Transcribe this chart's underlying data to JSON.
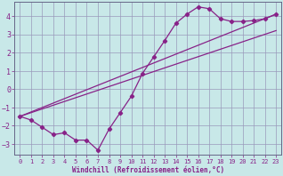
{
  "xlabel": "Windchill (Refroidissement éolien,°C)",
  "bg_color": "#c8e8e8",
  "grid_color": "#9999bb",
  "line_color": "#882288",
  "xlim": [
    -0.5,
    23.5
  ],
  "ylim": [
    -3.6,
    4.8
  ],
  "xticks": [
    0,
    1,
    2,
    3,
    4,
    5,
    6,
    7,
    8,
    9,
    10,
    11,
    12,
    13,
    14,
    15,
    16,
    17,
    18,
    19,
    20,
    21,
    22,
    23
  ],
  "yticks": [
    -3,
    -2,
    -1,
    0,
    1,
    2,
    3,
    4
  ],
  "curve_x": [
    0,
    1,
    2,
    3,
    4,
    5,
    6,
    7,
    8,
    9,
    10,
    11,
    12,
    13,
    14,
    15,
    16,
    17,
    18,
    19,
    20,
    21,
    22,
    23
  ],
  "curve_y": [
    -1.5,
    -1.7,
    -2.1,
    -2.5,
    -2.4,
    -2.8,
    -2.8,
    -3.35,
    -2.2,
    -1.3,
    -0.4,
    0.85,
    1.75,
    2.65,
    3.6,
    4.1,
    4.5,
    4.4,
    3.85,
    3.7,
    3.7,
    3.75,
    3.85,
    4.1
  ],
  "line1_x": [
    0,
    23
  ],
  "line1_y": [
    -1.5,
    4.1
  ],
  "line2_x": [
    0,
    23
  ],
  "line2_y": [
    -1.5,
    3.2
  ],
  "spine_color": "#666688"
}
